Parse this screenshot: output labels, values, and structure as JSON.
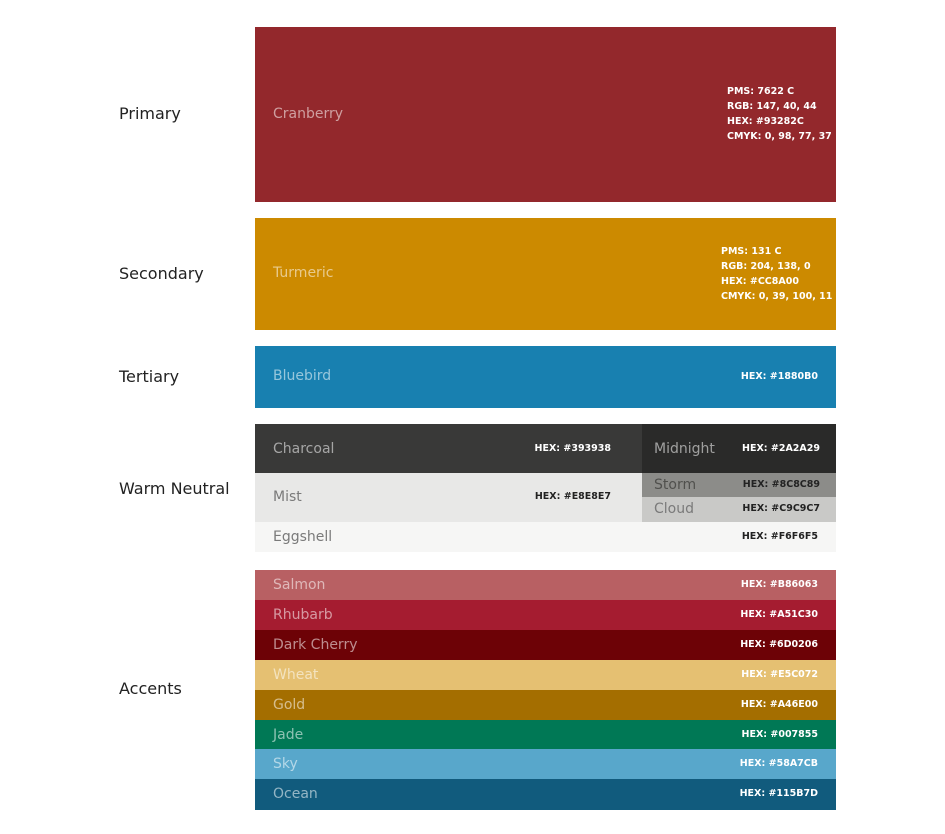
{
  "sections": {
    "primary": "Primary",
    "secondary": "Secondary",
    "tertiary": "Tertiary",
    "warm_neutral": "Warm Neutral",
    "accents": "Accents"
  },
  "primary": {
    "name": "Cranberry",
    "color": "#93282C",
    "pms": "PMS: 7622 C",
    "rgb": "RGB: 147, 40, 44",
    "hex": "HEX: #93282C",
    "cmyk": "CMYK: 0, 98, 77, 37"
  },
  "secondary": {
    "name": "Turmeric",
    "color": "#CC8A00",
    "pms": "PMS: 131 C",
    "rgb": "RGB: 204, 138, 0",
    "hex": "HEX: #CC8A00",
    "cmyk": "CMYK: 0, 39, 100, 11"
  },
  "tertiary": {
    "name": "Bluebird",
    "color": "#1880B0",
    "hex": "HEX: #1880B0"
  },
  "neutrals": {
    "charcoal": {
      "name": "Charcoal",
      "color": "#393938",
      "hex": "HEX: #393938"
    },
    "midnight": {
      "name": "Midnight",
      "color": "#2A2A29",
      "hex": "HEX: #2A2A29"
    },
    "mist": {
      "name": "Mist",
      "color": "#E8E8E7",
      "hex": "HEX: #E8E8E7"
    },
    "storm": {
      "name": "Storm",
      "color": "#8C8C89",
      "hex": "HEX: #8C8C89"
    },
    "cloud": {
      "name": "Cloud",
      "color": "#C9C9C7",
      "hex": "HEX: #C9C9C7"
    },
    "eggshell": {
      "name": "Eggshell",
      "color": "#F6F6F5",
      "hex": "HEX: #F6F6F5"
    }
  },
  "accents": [
    {
      "name": "Salmon",
      "color": "#B86063",
      "hex": "HEX: #B86063"
    },
    {
      "name": "Rhubarb",
      "color": "#A51C30",
      "hex": "HEX: #A51C30"
    },
    {
      "name": "Dark Cherry",
      "color": "#6D0206",
      "hex": "HEX: #6D0206"
    },
    {
      "name": "Wheat",
      "color": "#E5C072",
      "hex": "HEX: #E5C072"
    },
    {
      "name": "Gold",
      "color": "#A46E00",
      "hex": "HEX: #A46E00"
    },
    {
      "name": "Jade",
      "color": "#007855",
      "hex": "HEX: #007855"
    },
    {
      "name": "Sky",
      "color": "#58A7CB",
      "hex": "HEX: #58A7CB"
    },
    {
      "name": "Ocean",
      "color": "#115B7D",
      "hex": "HEX: #115B7D"
    }
  ]
}
